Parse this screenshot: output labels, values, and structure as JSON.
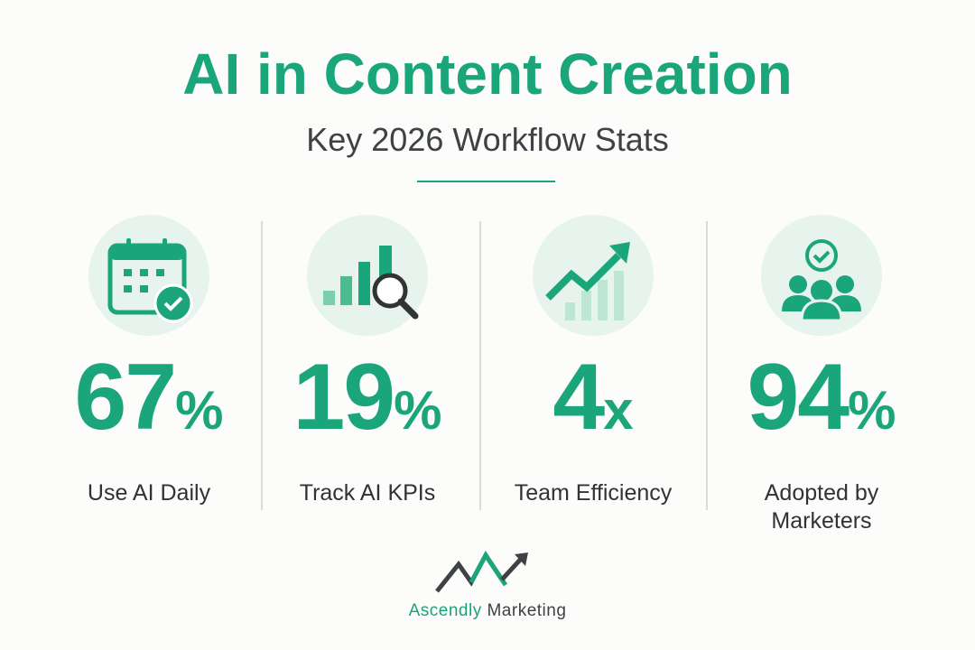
{
  "header": {
    "title": "AI in Content Creation",
    "subtitle": "Key 2026 Workflow Stats"
  },
  "stats": [
    {
      "number": "67",
      "unit": "%",
      "label": "Use AI Daily"
    },
    {
      "number": "19",
      "unit": "%",
      "label": "Track AI KPIs"
    },
    {
      "number": "4",
      "unit": "x",
      "label": "Team Efficiency"
    },
    {
      "number": "94",
      "unit": "%",
      "label": "Adopted by Marketers"
    }
  ],
  "logo": {
    "brand": "Ascendly",
    "suffix": "Marketing"
  }
}
